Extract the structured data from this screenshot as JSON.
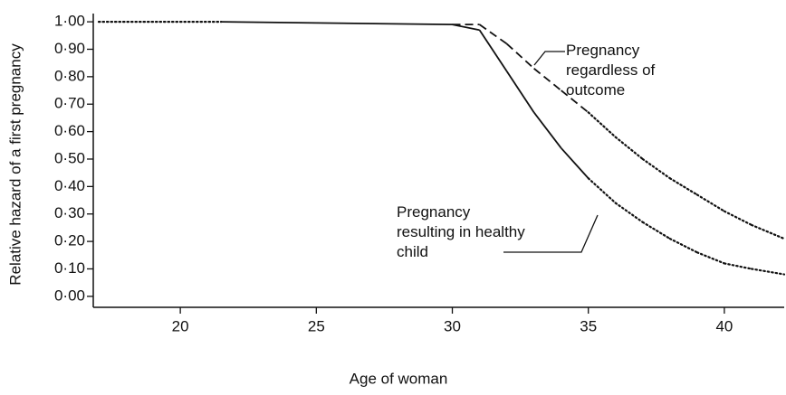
{
  "chart_data": {
    "type": "line",
    "x_label": "Age of woman",
    "y_label": "Relative hazard of a first pregnancy",
    "xlim": [
      16.8,
      42.2
    ],
    "xticks": [
      20,
      25,
      30,
      35,
      40
    ],
    "ylim": [
      -0.04,
      1.03
    ],
    "yticks": [
      {
        "value": 0,
        "label": "0·00"
      },
      {
        "value": 0.1,
        "label": "0·10"
      },
      {
        "value": 0.2,
        "label": "0·20"
      },
      {
        "value": 0.3,
        "label": "0·30"
      },
      {
        "value": 0.4,
        "label": "0·40"
      },
      {
        "value": 0.5,
        "label": "0·50"
      },
      {
        "value": 0.6,
        "label": "0·60"
      },
      {
        "value": 0.7,
        "label": "0·70"
      },
      {
        "value": 0.8,
        "label": "0·80"
      },
      {
        "value": 0.9,
        "label": "0·90"
      },
      {
        "value": 1,
        "label": "1·00"
      }
    ],
    "series": [
      {
        "name": "Pregnancy resulting in healthy child",
        "color": "#111111",
        "x": [
          17,
          21.5,
          30,
          31,
          32,
          33,
          34,
          35,
          36,
          37,
          38,
          39,
          40,
          41,
          42.2
        ],
        "values": [
          1,
          1,
          0.99,
          0.97,
          0.82,
          0.67,
          0.54,
          0.43,
          0.34,
          0.27,
          0.21,
          0.16,
          0.12,
          0.1,
          0.08
        ],
        "segment_styles": [
          "dotted",
          "solid",
          "solid",
          "solid",
          "solid",
          "solid",
          "solid",
          "dotted",
          "dotted",
          "dotted",
          "dotted",
          "dotted",
          "dotted",
          "dotted"
        ]
      },
      {
        "name": "Pregnancy regardless of outcome",
        "color": "#111111",
        "x": [
          30,
          31,
          32,
          33,
          34,
          35,
          36,
          37,
          38,
          39,
          40,
          41,
          42.2
        ],
        "values": [
          0.99,
          0.99,
          0.92,
          0.83,
          0.75,
          0.67,
          0.58,
          0.5,
          0.43,
          0.37,
          0.31,
          0.26,
          0.21
        ],
        "segment_styles": [
          "dashed",
          "dashed",
          "dashed",
          "dashed",
          "dashed",
          "dotted",
          "dotted",
          "dotted",
          "dotted",
          "dotted",
          "dotted",
          "dotted"
        ]
      }
    ]
  }
}
